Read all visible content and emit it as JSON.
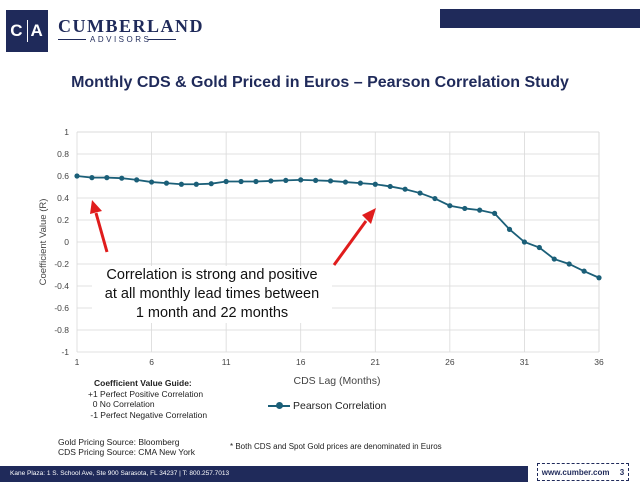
{
  "brand": {
    "name": "CUMBERLAND",
    "sub": "ADVISORS",
    "logo_left": "C",
    "logo_right": "A"
  },
  "title": "Monthly CDS & Gold Priced in Euros – Pearson Correlation Study",
  "callout": {
    "line1": "Correlation is strong and positive",
    "line2": "at all monthly lead times between",
    "line3": "1 month and 22 months"
  },
  "guide": {
    "title": "Coefficient Value Guide:",
    "lines": [
      "+1 Perfect Positive Correlation",
      "  0 No Correlation",
      " -1 Perfect Negative Correlation"
    ]
  },
  "sources": {
    "gold": "Gold Pricing Source: Bloomberg",
    "cds": "CDS Pricing Source: CMA New York"
  },
  "note": "* Both CDS and Spot Gold prices are denominated in Euros",
  "footer": {
    "address": "Kane Plaza:  1 S. School Ave, Ste 900  Sarasota, FL 34237   |   T: 800.257.7013",
    "url": "www.cumber.com",
    "page": "3"
  },
  "colors": {
    "navy": "#1f2a5a",
    "series": "#1b5f78",
    "arrow": "#e01c1c",
    "grid": "#d9d9d9"
  },
  "chart_data": {
    "type": "line",
    "title": "",
    "xlabel": "CDS Lag (Months)",
    "ylabel": "Coefficient Value (R)",
    "xlim": [
      1,
      36
    ],
    "ylim": [
      -1,
      1
    ],
    "xticks": [
      1,
      6,
      11,
      16,
      21,
      26,
      31,
      36
    ],
    "yticks": [
      1,
      0.8,
      0.6,
      0.4,
      0.2,
      0,
      -0.2,
      -0.4,
      -0.6,
      -0.8,
      -1
    ],
    "grid": true,
    "legend": "bottom",
    "series": [
      {
        "name": "Pearson Correlation",
        "x": [
          1,
          2,
          3,
          4,
          5,
          6,
          7,
          8,
          9,
          10,
          11,
          12,
          13,
          14,
          15,
          16,
          17,
          18,
          19,
          20,
          21,
          22,
          23,
          24,
          25,
          26,
          27,
          28,
          29,
          30,
          31,
          32,
          33,
          34,
          35,
          36
        ],
        "y": [
          0.6,
          0.585,
          0.585,
          0.58,
          0.565,
          0.545,
          0.535,
          0.525,
          0.525,
          0.53,
          0.55,
          0.55,
          0.55,
          0.555,
          0.56,
          0.565,
          0.56,
          0.555,
          0.545,
          0.535,
          0.525,
          0.505,
          0.48,
          0.445,
          0.395,
          0.33,
          0.305,
          0.29,
          0.26,
          0.115,
          0.0,
          -0.05,
          -0.155,
          -0.2,
          -0.265,
          -0.325
        ]
      }
    ]
  }
}
